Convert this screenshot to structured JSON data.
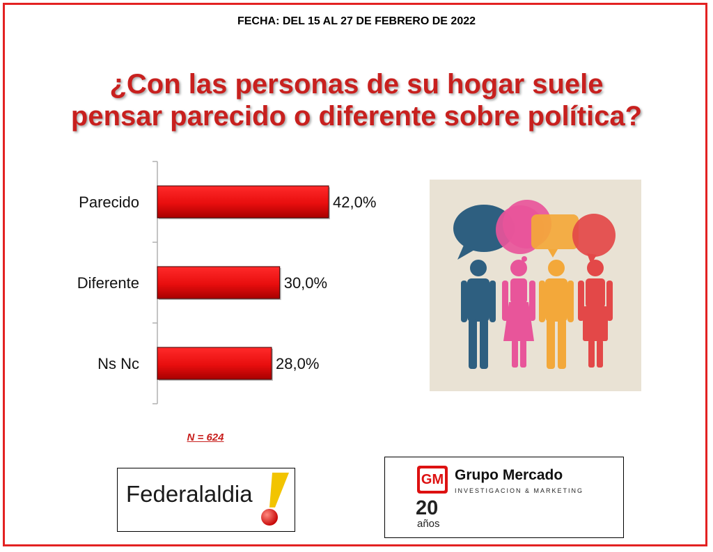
{
  "header": {
    "date": "FECHA: DEL 15 AL 27 DE FEBRERO DE 2022",
    "question_line1": "¿Con las personas de su hogar suele",
    "question_line2": "pensar parecido o diferente sobre política?"
  },
  "chart_data": {
    "type": "bar",
    "orientation": "horizontal",
    "categories": [
      "Parecido",
      "Diferente",
      "Ns Nc"
    ],
    "values": [
      42.0,
      30.0,
      28.0
    ],
    "value_labels": [
      "42,0%",
      "30,0%",
      "28,0%"
    ],
    "unit": "%",
    "xlim": [
      0,
      60
    ],
    "grid": false,
    "bar_color": "#e81010"
  },
  "sample": {
    "label": "N = 624"
  },
  "logos": {
    "federal_text": "Federalaldia",
    "gm_name": "Grupo Mercado",
    "gm_subtitle": "INVESTIGACION & MARKETING",
    "gm_years": "20",
    "gm_years_word": "años",
    "gm_badge": "GM"
  },
  "colors": {
    "frame": "#e32222",
    "title": "#c8201e",
    "bar": "#e81010",
    "person_blue": "#2e5f80",
    "person_pink": "#e8559a",
    "person_orange": "#f3a83a",
    "person_red": "#e34848"
  }
}
